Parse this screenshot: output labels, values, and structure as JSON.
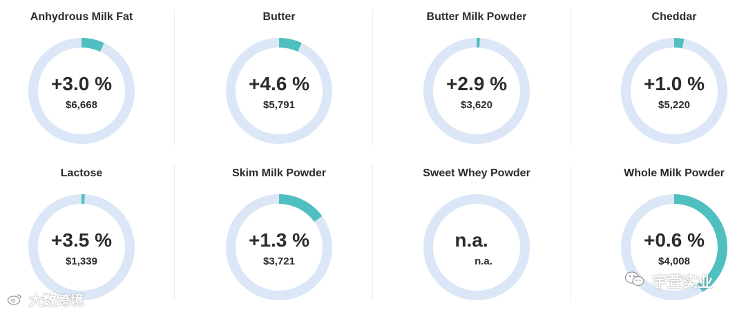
{
  "colors": {
    "ring_track": "#dbe7f6",
    "ring_fill": "#4fbfc0",
    "text": "#2b2b2b",
    "divider": "#ececec"
  },
  "cards": [
    {
      "title": "Anhydrous Milk Fat",
      "change": "+3.0 %",
      "price": "$6,668",
      "ring_fraction": 0.07
    },
    {
      "title": "Butter",
      "change": "+4.6 %",
      "price": "$5,791",
      "ring_fraction": 0.07
    },
    {
      "title": "Butter Milk Powder",
      "change": "+2.9 %",
      "price": "$3,620",
      "ring_fraction": 0.01
    },
    {
      "title": "Cheddar",
      "change": "+1.0 %",
      "price": "$5,220",
      "ring_fraction": 0.03
    },
    {
      "title": "Lactose",
      "change": "+3.5 %",
      "price": "$1,339",
      "ring_fraction": 0.01
    },
    {
      "title": "Skim Milk Powder",
      "change": "+1.3 %",
      "price": "$3,721",
      "ring_fraction": 0.15
    },
    {
      "title": "Sweet Whey Powder",
      "change": "n.a.",
      "price": "n.a.",
      "ring_fraction": 0
    },
    {
      "title": "Whole Milk Powder",
      "change": "+0.6 %",
      "price": "$4,008",
      "ring_fraction": 0.41
    }
  ],
  "watermarks": {
    "left_icon": "weibo-icon",
    "left_text": "大数跨境",
    "right_icon": "wechat-icon",
    "right_text": "宇萱实业"
  }
}
